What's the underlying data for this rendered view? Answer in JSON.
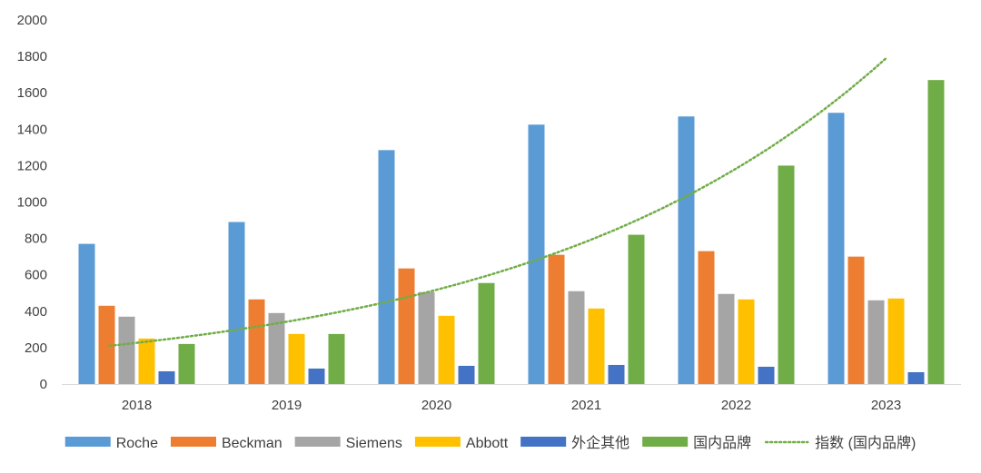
{
  "chart_data": {
    "type": "bar",
    "title": "",
    "xlabel": "",
    "ylabel": "",
    "categories": [
      "2018",
      "2019",
      "2020",
      "2021",
      "2022",
      "2023"
    ],
    "ylim": [
      0,
      2000
    ],
    "yticks": [
      0,
      200,
      400,
      600,
      800,
      1000,
      1200,
      1400,
      1600,
      1800,
      2000
    ],
    "grid": false,
    "legend_position": "bottom",
    "series": [
      {
        "name": "Roche",
        "color": "#5B9BD5",
        "values": [
          770,
          890,
          1285,
          1425,
          1470,
          1490
        ]
      },
      {
        "name": "Beckman",
        "color": "#ED7D31",
        "values": [
          430,
          465,
          635,
          710,
          730,
          700
        ]
      },
      {
        "name": "Siemens",
        "color": "#A5A5A5",
        "values": [
          370,
          390,
          505,
          510,
          495,
          460
        ]
      },
      {
        "name": "Abbott",
        "color": "#FFC000",
        "values": [
          250,
          275,
          375,
          415,
          465,
          470
        ]
      },
      {
        "name": "外企其他",
        "color": "#4472C4",
        "values": [
          70,
          85,
          100,
          105,
          95,
          65
        ]
      },
      {
        "name": "国内品牌",
        "color": "#70AD47",
        "values": [
          220,
          275,
          555,
          820,
          1200,
          1670
        ]
      }
    ],
    "trendline": {
      "name": "指数 (国内品牌)",
      "color": "#70AD47",
      "style": "dotted",
      "type": "exponential",
      "points": [
        {
          "x": 0,
          "y": 210
        },
        {
          "x": 1,
          "y": 315
        },
        {
          "x": 2,
          "y": 480
        },
        {
          "x": 3,
          "y": 700
        },
        {
          "x": 4,
          "y": 1050
        },
        {
          "x": 5,
          "y": 1790
        }
      ]
    }
  }
}
